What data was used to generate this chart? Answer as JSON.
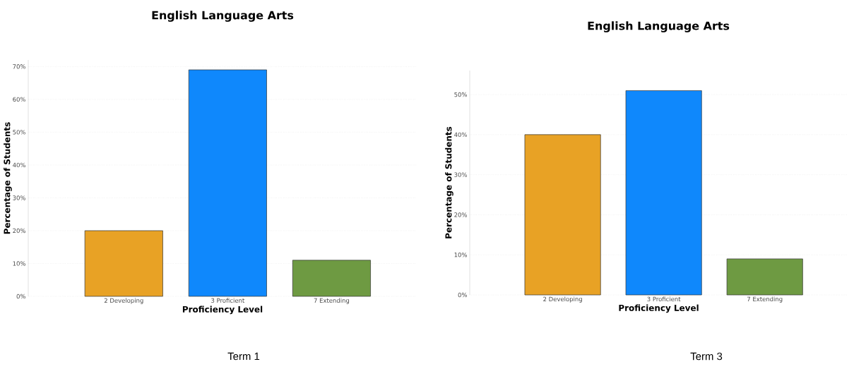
{
  "chart_data": [
    {
      "type": "bar",
      "title": "English Language Arts",
      "xlabel": "Proficiency Level",
      "ylabel": "Percentage of Students",
      "categories": [
        "2 Developing",
        "3 Proficient",
        "7 Extending"
      ],
      "values": [
        20,
        69,
        11
      ],
      "colors": [
        "#e8a225",
        "#0f88fc",
        "#6e9a42"
      ],
      "ylim": [
        0,
        72
      ],
      "yticks": [
        {
          "value": 0,
          "label": "0%"
        },
        {
          "value": 10,
          "label": "10%"
        },
        {
          "value": 20,
          "label": "20%"
        },
        {
          "value": 30,
          "label": "30%"
        },
        {
          "value": 40,
          "label": "40%"
        },
        {
          "value": 50,
          "label": "50%"
        },
        {
          "value": 60,
          "label": "60%"
        },
        {
          "value": 70,
          "label": "70%"
        }
      ],
      "grid": "y",
      "annotations": [
        "Term 1"
      ]
    },
    {
      "type": "bar",
      "title": "English Language Arts",
      "xlabel": "Proficiency Level",
      "ylabel": "Percentage of Students",
      "categories": [
        "2 Developing",
        "3 Proficient",
        "7 Extending"
      ],
      "values": [
        40,
        51,
        9
      ],
      "colors": [
        "#e8a225",
        "#0f88fc",
        "#6e9a42"
      ],
      "ylim": [
        0,
        56
      ],
      "yticks": [
        {
          "value": 0,
          "label": "0%"
        },
        {
          "value": 10,
          "label": "10%"
        },
        {
          "value": 20,
          "label": "20%"
        },
        {
          "value": 30,
          "label": "30%"
        },
        {
          "value": 40,
          "label": "40%"
        },
        {
          "value": 50,
          "label": "50%"
        }
      ],
      "grid": "y",
      "annotations": [
        "Term 3"
      ]
    }
  ]
}
